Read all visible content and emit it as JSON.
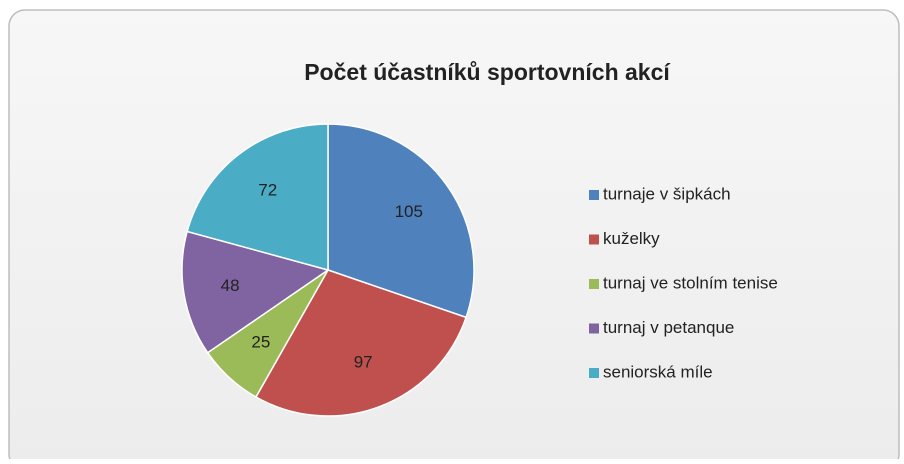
{
  "chart_data": {
    "type": "pie",
    "title": "Počet účastníků sportovních akcí",
    "categories": [
      "turnaje v šipkách",
      "kuželky",
      "turnaj ve stolním tenise",
      "turnaj v petanque",
      "seniorská míle"
    ],
    "values": [
      105,
      97,
      25,
      48,
      72
    ],
    "colors": [
      "#4f81bd",
      "#c0504d",
      "#9bbb59",
      "#8064a2",
      "#4bacc6"
    ],
    "legend": "right"
  }
}
